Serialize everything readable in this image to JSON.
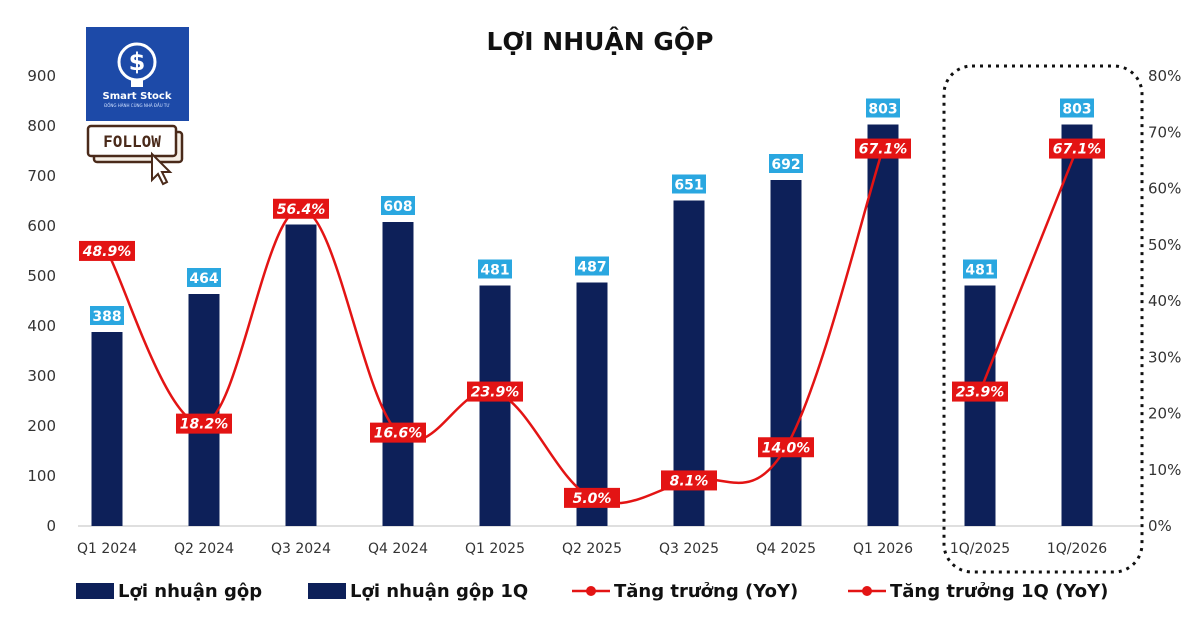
{
  "logo": {
    "name": "Smart Stock",
    "tagline": "ĐỒNG HÀNH CÙNG NHÀ ĐẦU TƯ"
  },
  "follow_badge": "FOLLOW",
  "chart_data": {
    "type": "bar",
    "title": "LỢI NHUẬN GỘP",
    "categories": [
      "Q1 2024",
      "Q2 2024",
      "Q3 2024",
      "Q4 2024",
      "Q1 2025",
      "Q2 2025",
      "Q3 2025",
      "Q4 2025",
      "Q1 2026",
      "1Q/2025",
      "1Q/2026"
    ],
    "series": [
      {
        "name": "Lợi nhuận gộp",
        "type": "bar",
        "axis": "left",
        "color": "#0d2059",
        "values": [
          388,
          464,
          603,
          608,
          481,
          487,
          651,
          692,
          803,
          null,
          null
        ],
        "labels": [
          "388",
          "464",
          "",
          "608",
          "481",
          "487",
          "651",
          "692",
          "803",
          "",
          ""
        ]
      },
      {
        "name": "Lợi nhuận gộp 1Q",
        "type": "bar",
        "axis": "left",
        "color": "#0d2059",
        "values": [
          null,
          null,
          null,
          null,
          null,
          null,
          null,
          null,
          null,
          481,
          803
        ],
        "labels": [
          "",
          "",
          "",
          "",
          "",
          "",
          "",
          "",
          "",
          "481",
          "803"
        ]
      },
      {
        "name": "Tăng trưởng (YoY)",
        "type": "line",
        "axis": "right",
        "color": "#e31414",
        "values": [
          48.9,
          18.2,
          56.4,
          16.6,
          23.9,
          5.0,
          8.1,
          14.0,
          67.1,
          null,
          null
        ],
        "labels": [
          "48.9%",
          "18.2%",
          "56.4%",
          "16.6%",
          "23.9%",
          "5.0%",
          "8.1%",
          "14.0%",
          "67.1%",
          "",
          ""
        ]
      },
      {
        "name": "Tăng trưởng 1Q (YoY)",
        "type": "line",
        "axis": "right",
        "color": "#e31414",
        "values": [
          null,
          null,
          null,
          null,
          null,
          null,
          null,
          null,
          null,
          23.9,
          67.1
        ],
        "labels": [
          "",
          "",
          "",
          "",
          "",
          "",
          "",
          "",
          "",
          "23.9%",
          "67.1%"
        ]
      }
    ],
    "y_left": {
      "min": 0,
      "max": 900,
      "ticks": [
        "0",
        "100",
        "200",
        "300",
        "400",
        "500",
        "600",
        "700",
        "800",
        "900"
      ]
    },
    "y_right": {
      "min": 0,
      "max": 80,
      "ticks": [
        "0%",
        "10%",
        "20%",
        "30%",
        "40%",
        "50%",
        "60%",
        "70%",
        "80%"
      ]
    },
    "grid": false,
    "legend_position": "bottom",
    "highlight_box": {
      "categories": [
        "1Q/2025",
        "1Q/2026"
      ],
      "style": "dotted"
    }
  }
}
